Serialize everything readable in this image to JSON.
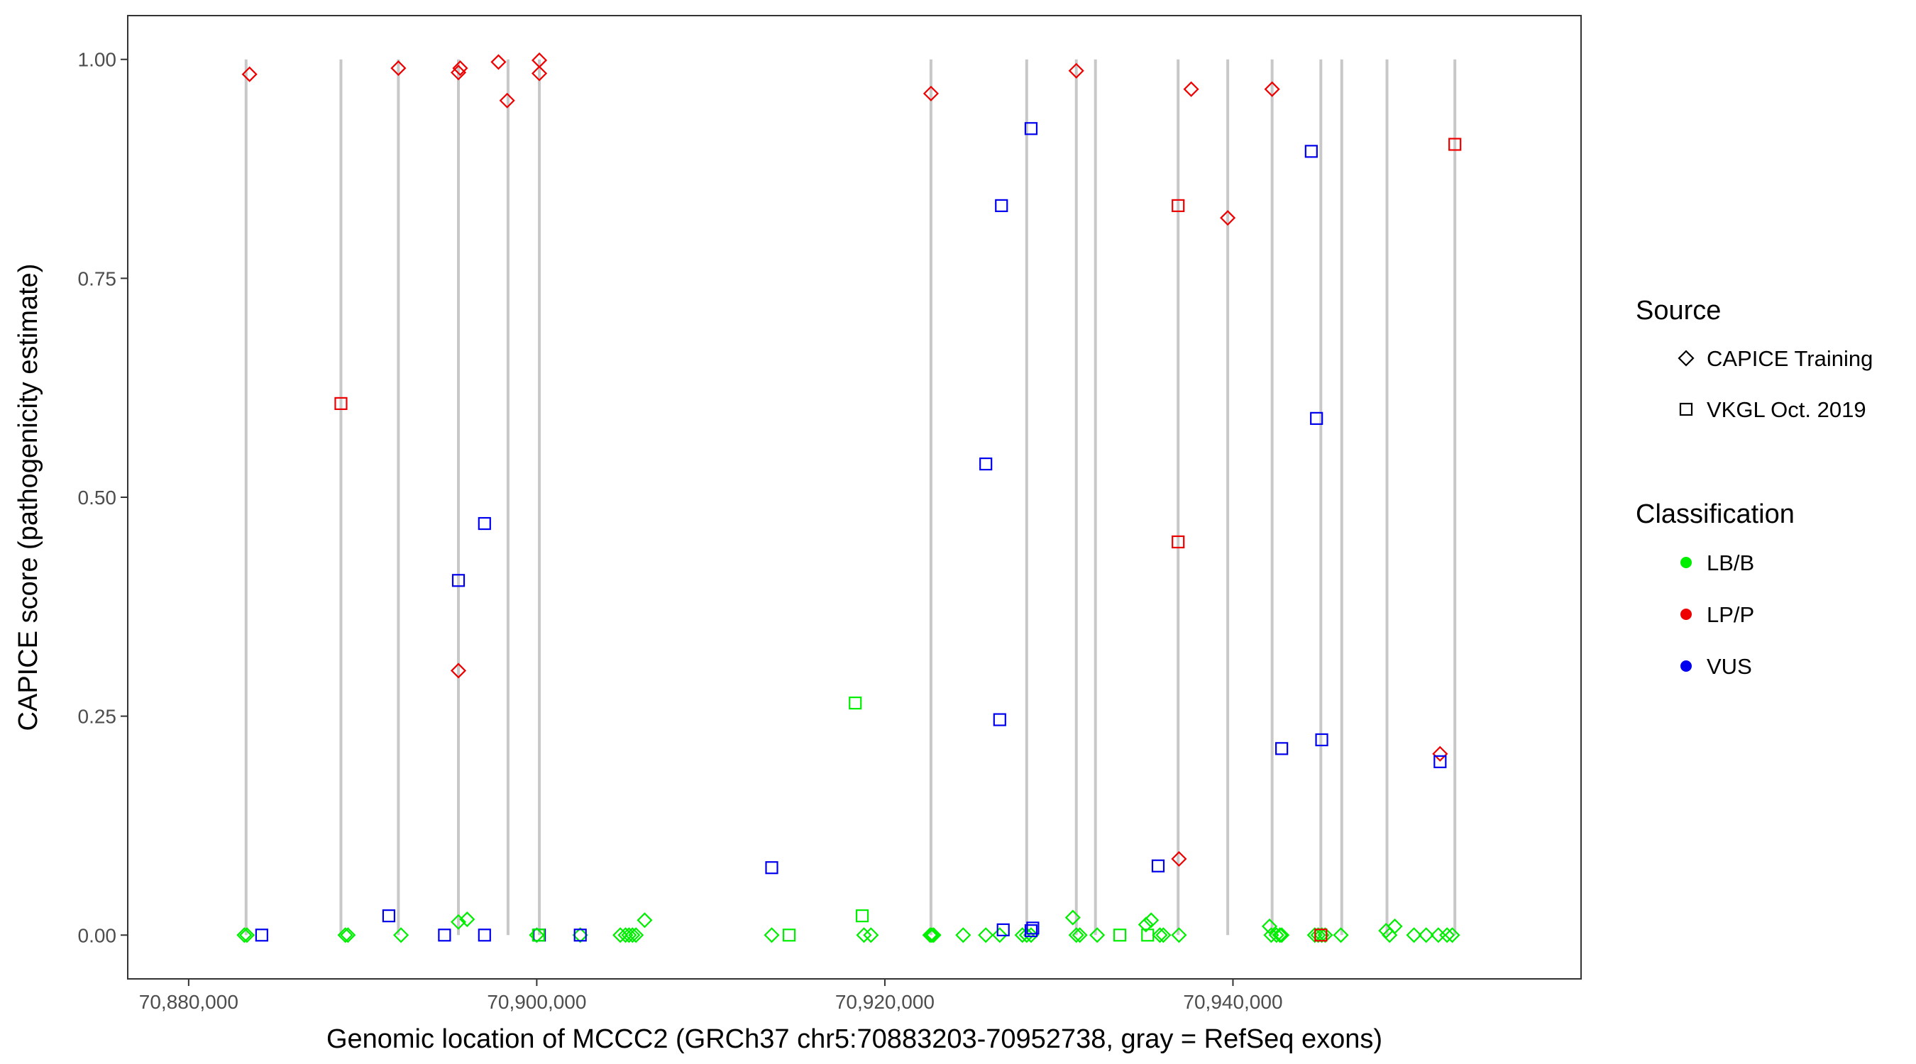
{
  "chart_data": {
    "type": "scatter",
    "xlabel": "Genomic location of MCCC2 (GRCh37 chr5:70883203-70952738, gray = RefSeq exons)",
    "ylabel": "CAPICE score (pathogenicity estimate)",
    "xlim": [
      70876500,
      70960000
    ],
    "ylim": [
      -0.05,
      1.05
    ],
    "x_ticks": [
      70880000,
      70900000,
      70920000,
      70940000
    ],
    "x_tick_labels": [
      "70,880,000",
      "70,900,000",
      "70,920,000",
      "70,940,000"
    ],
    "y_ticks": [
      0,
      0.25,
      0.5,
      0.75,
      1.0
    ],
    "y_tick_labels": [
      "0.00",
      "0.25",
      "0.50",
      "0.75",
      "1.00"
    ],
    "grid": false,
    "exon_color": "#c8c8c8",
    "exons": [
      70883300,
      70888750,
      70892050,
      70895500,
      70898350,
      70900150,
      70922650,
      70928150,
      70931000,
      70932100,
      70936850,
      70939700,
      70942250,
      70945050,
      70946250,
      70948850,
      70952750
    ],
    "legend": {
      "source_title": "Source",
      "source_items": [
        {
          "label": "CAPICE Training",
          "shape": "diamond"
        },
        {
          "label": "VKGL Oct. 2019",
          "shape": "square"
        }
      ],
      "class_title": "Classification",
      "class_items": [
        {
          "label": "LB/B",
          "color": "#00ee00"
        },
        {
          "label": "LP/P",
          "color": "#ee0000"
        },
        {
          "label": "VUS",
          "color": "#0000ee"
        }
      ],
      "placement": "right"
    },
    "series": [
      {
        "source": "CAPICE Training",
        "classification": "LP/P",
        "points": [
          [
            70883500,
            0.983
          ],
          [
            70892050,
            0.99
          ],
          [
            70895500,
            0.985
          ],
          [
            70895600,
            0.99
          ],
          [
            70897800,
            0.997
          ],
          [
            70898300,
            0.953
          ],
          [
            70900150,
            0.999
          ],
          [
            70900150,
            0.984
          ],
          [
            70895500,
            0.302
          ],
          [
            70922650,
            0.961
          ],
          [
            70931000,
            0.987
          ],
          [
            70937600,
            0.966
          ],
          [
            70939700,
            0.819
          ],
          [
            70942250,
            0.966
          ],
          [
            70936900,
            0.087
          ],
          [
            70951900,
            0.207
          ]
        ]
      },
      {
        "source": "CAPICE Training",
        "classification": "LB/B",
        "points": [
          [
            70883200,
            0
          ],
          [
            70883350,
            0
          ],
          [
            70889000,
            0
          ],
          [
            70889150,
            0
          ],
          [
            70892200,
            0
          ],
          [
            70895500,
            0.015
          ],
          [
            70896000,
            0.018
          ],
          [
            70900000,
            0
          ],
          [
            70902500,
            0
          ],
          [
            70904800,
            0
          ],
          [
            70905100,
            0
          ],
          [
            70905300,
            0
          ],
          [
            70905500,
            0
          ],
          [
            70905700,
            0
          ],
          [
            70906200,
            0.017
          ],
          [
            70913500,
            0
          ],
          [
            70918800,
            0
          ],
          [
            70919200,
            0
          ],
          [
            70922600,
            0
          ],
          [
            70922700,
            0
          ],
          [
            70922800,
            0
          ],
          [
            70924500,
            0
          ],
          [
            70925800,
            0
          ],
          [
            70926600,
            0
          ],
          [
            70927900,
            0
          ],
          [
            70928150,
            0
          ],
          [
            70928400,
            0
          ],
          [
            70930800,
            0.02
          ],
          [
            70931000,
            0
          ],
          [
            70931200,
            0
          ],
          [
            70932200,
            0
          ],
          [
            70935000,
            0.012
          ],
          [
            70935300,
            0.017
          ],
          [
            70935800,
            0
          ],
          [
            70936000,
            0
          ],
          [
            70936900,
            0
          ],
          [
            70942100,
            0.01
          ],
          [
            70942200,
            0
          ],
          [
            70942500,
            0
          ],
          [
            70942700,
            0
          ],
          [
            70942800,
            0
          ],
          [
            70944700,
            0
          ],
          [
            70944900,
            0
          ],
          [
            70945100,
            0
          ],
          [
            70945300,
            0
          ],
          [
            70946200,
            0
          ],
          [
            70948800,
            0.005
          ],
          [
            70949000,
            0
          ],
          [
            70949300,
            0.01
          ],
          [
            70950400,
            0
          ],
          [
            70951100,
            0
          ],
          [
            70951800,
            0
          ],
          [
            70952300,
            0
          ],
          [
            70952600,
            0
          ]
        ]
      },
      {
        "source": "VKGL Oct. 2019",
        "classification": "LP/P",
        "points": [
          [
            70888750,
            0.607
          ],
          [
            70936850,
            0.833
          ],
          [
            70936850,
            0.449
          ],
          [
            70945050,
            0
          ],
          [
            70952750,
            0.903
          ]
        ]
      },
      {
        "source": "VKGL Oct. 2019",
        "classification": "VUS",
        "points": [
          [
            70884200,
            0
          ],
          [
            70891500,
            0.022
          ],
          [
            70894700,
            0
          ],
          [
            70895500,
            0.405
          ],
          [
            70897000,
            0.47
          ],
          [
            70897000,
            0
          ],
          [
            70900150,
            0
          ],
          [
            70902500,
            0
          ],
          [
            70913500,
            0.077
          ],
          [
            70925800,
            0.538
          ],
          [
            70926700,
            0.833
          ],
          [
            70926600,
            0.246
          ],
          [
            70926800,
            0.006
          ],
          [
            70928400,
            0.921
          ],
          [
            70928400,
            0.005
          ],
          [
            70928500,
            0.008
          ],
          [
            70935700,
            0.079
          ],
          [
            70942800,
            0.213
          ],
          [
            70944500,
            0.895
          ],
          [
            70944800,
            0.59
          ],
          [
            70945100,
            0.223
          ],
          [
            70951900,
            0.198
          ]
        ]
      },
      {
        "source": "VKGL Oct. 2019",
        "classification": "LB/B",
        "points": [
          [
            70900100,
            0
          ],
          [
            70914500,
            0
          ],
          [
            70918300,
            0.265
          ],
          [
            70918700,
            0.022
          ],
          [
            70933500,
            0
          ],
          [
            70935100,
            0
          ]
        ]
      }
    ]
  }
}
